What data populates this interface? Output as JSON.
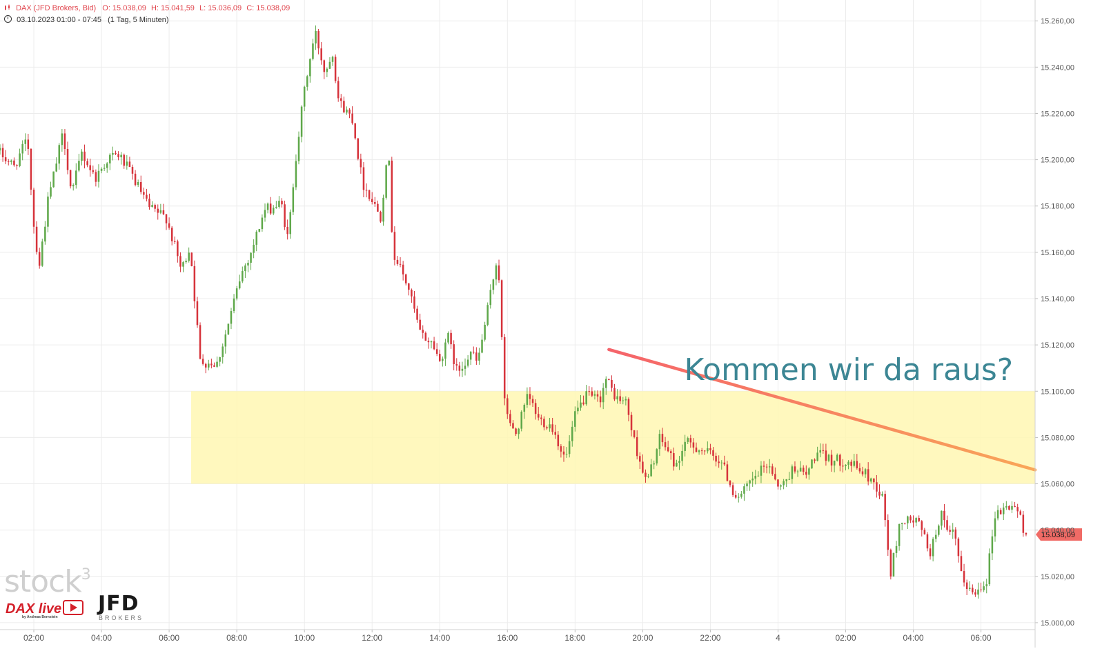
{
  "header": {
    "title": "DAX (JFD Brokers, Bid)",
    "ohlc": {
      "open": "O: 15.038,09",
      "high": "H: 15.041,59",
      "low": "L: 15.036,09",
      "close": "C: 15.038,09"
    },
    "range": "03.10.2023 01:00 - 07:45",
    "interval": "(1 Tag, 5 Minuten)"
  },
  "logos": {
    "stock3": "stock",
    "stock3_sup": "3",
    "daxlive": "DAX live",
    "daxlive_by": "by Andreas Bernstein",
    "jfd": "JFD",
    "jfd_sub": "BROKERS"
  },
  "colors": {
    "up": "#5fa84a",
    "down": "#d6333b",
    "zone": "#fff7b3",
    "annotation_text": "#3c8694",
    "price_badge": "#f06b66",
    "trend_start": "#f5636a",
    "trend_end": "#f9a658"
  },
  "chart_data": {
    "type": "candlestick",
    "interval": "5 min",
    "price_axis_labels": [
      "15.260,00",
      "15.240,00",
      "15.220,00",
      "15.200,00",
      "15.180,00",
      "15.160,00",
      "15.140,00",
      "15.120,00",
      "15.100,00",
      "15.080,00",
      "15.060,00",
      "15.040,00",
      "15.020,00",
      "15.000,00"
    ],
    "price_range": [
      14997,
      15269
    ],
    "time_axis": {
      "labels": [
        "02:00",
        "04:00",
        "06:00",
        "08:00",
        "10:00",
        "12:00",
        "14:00",
        "16:00",
        "18:00",
        "20:00",
        "22:00",
        "4",
        "02:00",
        "04:00",
        "06:00"
      ],
      "label_hours": [
        2,
        4,
        6,
        8,
        10,
        12,
        14,
        16,
        18,
        20,
        22,
        24,
        26,
        28,
        30
      ]
    },
    "hour_range": [
      1.0,
      31.6
    ],
    "last_price": "15.038,09",
    "current_price_marker": {
      "value": 15038.09,
      "label": "15.038,09"
    },
    "zone": {
      "from_hour": 6.65,
      "to_hour": 31.6,
      "low": 15060,
      "high": 15100
    },
    "trendline": {
      "start": {
        "hour": 19.0,
        "value": 15118
      },
      "end": {
        "hour": 31.6,
        "value": 15066
      }
    },
    "annotation": {
      "text": "Kommen wir da raus?",
      "hour": 30.95,
      "value": 15109
    },
    "keypoints": [
      [
        1.0,
        15204
      ],
      [
        1.5,
        15197
      ],
      [
        1.9,
        15209
      ],
      [
        2.1,
        15168
      ],
      [
        2.25,
        15155
      ],
      [
        2.5,
        15182
      ],
      [
        2.95,
        15212
      ],
      [
        3.2,
        15185
      ],
      [
        3.5,
        15203
      ],
      [
        3.9,
        15192
      ],
      [
        4.3,
        15201
      ],
      [
        4.6,
        15202
      ],
      [
        5.0,
        15193
      ],
      [
        5.5,
        15179
      ],
      [
        6.0,
        15175
      ],
      [
        6.45,
        15152
      ],
      [
        6.7,
        15163
      ],
      [
        7.0,
        15113
      ],
      [
        7.5,
        15112
      ],
      [
        7.8,
        15127
      ],
      [
        8.2,
        15150
      ],
      [
        8.5,
        15160
      ],
      [
        8.9,
        15178
      ],
      [
        9.4,
        15181
      ],
      [
        9.6,
        15165
      ],
      [
        9.8,
        15198
      ],
      [
        10.1,
        15232
      ],
      [
        10.4,
        15255
      ],
      [
        10.7,
        15237
      ],
      [
        10.9,
        15248
      ],
      [
        11.1,
        15225
      ],
      [
        11.5,
        15218
      ],
      [
        11.8,
        15190
      ],
      [
        12.0,
        15185
      ],
      [
        12.35,
        15175
      ],
      [
        12.55,
        15208
      ],
      [
        12.7,
        15160
      ],
      [
        13.15,
        15145
      ],
      [
        13.5,
        15125
      ],
      [
        13.9,
        15120
      ],
      [
        14.1,
        15112
      ],
      [
        14.3,
        15125
      ],
      [
        14.6,
        15108
      ],
      [
        15.0,
        15117
      ],
      [
        15.2,
        15112
      ],
      [
        15.5,
        15135
      ],
      [
        15.8,
        15160
      ],
      [
        16.0,
        15095
      ],
      [
        16.3,
        15080
      ],
      [
        16.7,
        15098
      ],
      [
        17.0,
        15088
      ],
      [
        17.4,
        15085
      ],
      [
        17.8,
        15070
      ],
      [
        18.1,
        15090
      ],
      [
        18.4,
        15098
      ],
      [
        18.8,
        15096
      ],
      [
        19.0,
        15105
      ],
      [
        19.3,
        15097
      ],
      [
        19.6,
        15095
      ],
      [
        19.8,
        15080
      ],
      [
        20.2,
        15060
      ],
      [
        20.6,
        15080
      ],
      [
        21.1,
        15067
      ],
      [
        21.3,
        15078
      ],
      [
        21.8,
        15075
      ],
      [
        22.4,
        15070
      ],
      [
        22.8,
        15055
      ],
      [
        23.0,
        15055
      ],
      [
        23.25,
        15060
      ],
      [
        23.8,
        15069
      ],
      [
        24.15,
        15058
      ],
      [
        24.6,
        15068
      ],
      [
        24.9,
        15063
      ],
      [
        25.2,
        15073
      ],
      [
        25.4,
        15072
      ],
      [
        25.7,
        15070
      ],
      [
        26.1,
        15070
      ],
      [
        26.6,
        15065
      ],
      [
        26.95,
        15060
      ],
      [
        27.2,
        15053
      ],
      [
        27.4,
        15020
      ],
      [
        27.7,
        15044
      ],
      [
        28.2,
        15044
      ],
      [
        28.6,
        15030
      ],
      [
        28.9,
        15048
      ],
      [
        29.1,
        15037
      ],
      [
        29.3,
        15039
      ],
      [
        29.5,
        15020
      ],
      [
        29.85,
        15012
      ],
      [
        30.25,
        15019
      ],
      [
        30.5,
        15047
      ],
      [
        31.0,
        15051
      ],
      [
        31.2,
        15048
      ],
      [
        31.35,
        15038
      ]
    ]
  }
}
